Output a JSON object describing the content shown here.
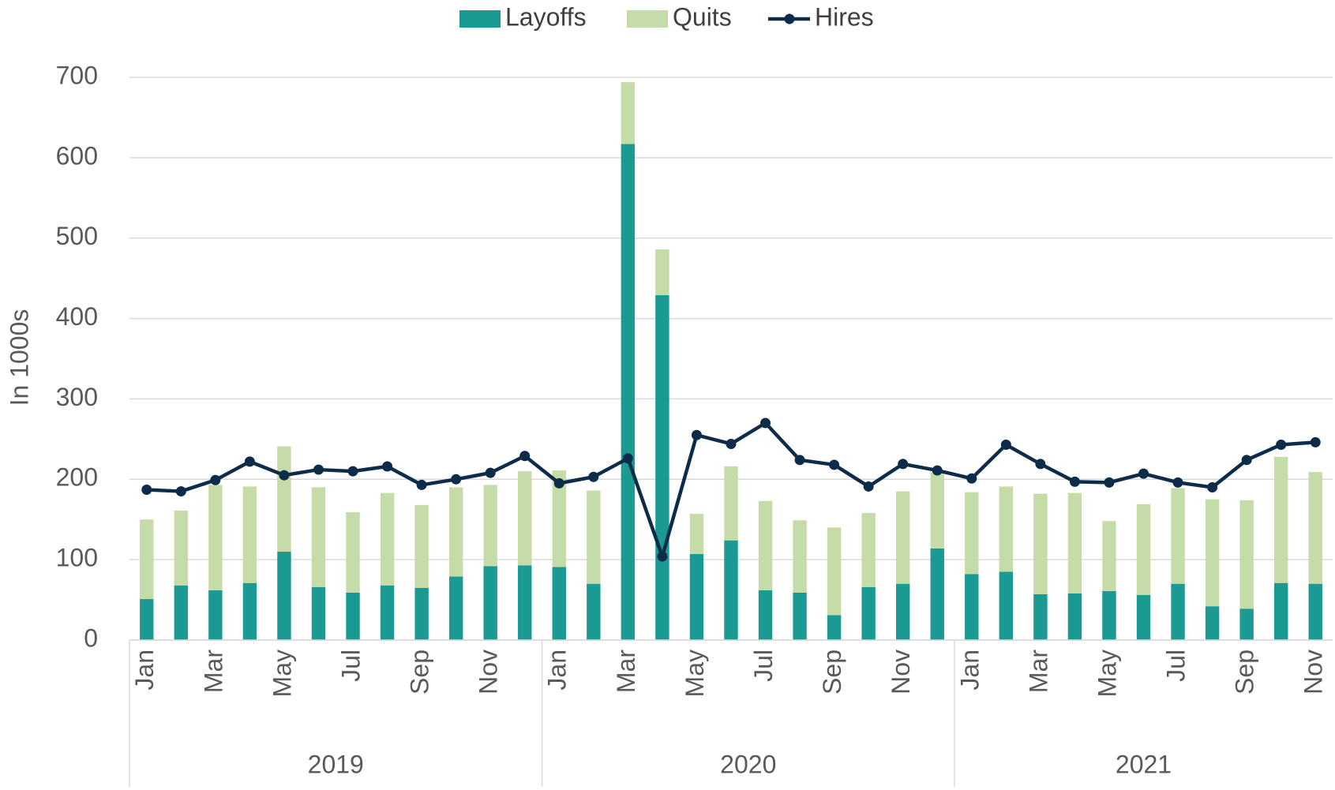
{
  "chart_data": {
    "type": "bar",
    "stacked": true,
    "y_label": "In 1000s",
    "groups": [
      {
        "label": "2019",
        "categories": [
          "Jan",
          null,
          "Mar",
          null,
          "May",
          null,
          "Jul",
          null,
          "Sep",
          null,
          "Nov",
          null
        ]
      },
      {
        "label": "2020",
        "categories": [
          "Jan",
          null,
          "Mar",
          null,
          "May",
          null,
          "Jul",
          null,
          "Sep",
          null,
          "Nov",
          null
        ]
      },
      {
        "label": "2021",
        "categories": [
          "Jan",
          null,
          "Mar",
          null,
          "May",
          null,
          "Jul",
          null,
          "Sep",
          null,
          "Nov"
        ]
      }
    ],
    "series": [
      {
        "name": "Layoffs",
        "type": "bar",
        "color": "#1a9a92",
        "values": [
          51,
          68,
          62,
          71,
          110,
          66,
          59,
          68,
          65,
          79,
          92,
          93,
          91,
          70,
          617,
          429,
          107,
          124,
          62,
          59,
          31,
          66,
          70,
          114,
          82,
          85,
          57,
          58,
          61,
          56,
          70,
          42,
          39,
          71,
          70
        ]
      },
      {
        "name": "Quits",
        "type": "bar",
        "color": "#c5dca8",
        "values": [
          99,
          93,
          131,
          120,
          131,
          124,
          100,
          115,
          103,
          111,
          101,
          117,
          120,
          116,
          77,
          57,
          50,
          92,
          111,
          90,
          109,
          92,
          115,
          95,
          102,
          106,
          125,
          125,
          87,
          113,
          119,
          133,
          135,
          157,
          139
        ]
      },
      {
        "name": "Hires",
        "type": "line",
        "color": "#0d2c4a",
        "values": [
          187,
          185,
          199,
          222,
          205,
          212,
          210,
          216,
          193,
          200,
          208,
          229,
          195,
          203,
          226,
          104,
          255,
          244,
          270,
          224,
          218,
          191,
          219,
          211,
          201,
          243,
          219,
          197,
          196,
          207,
          196,
          190,
          224,
          243,
          246
        ]
      }
    ],
    "ylim": [
      0,
      700
    ],
    "yticks": [
      0,
      100,
      200,
      300,
      400,
      500,
      600,
      700
    ],
    "grid": true
  }
}
